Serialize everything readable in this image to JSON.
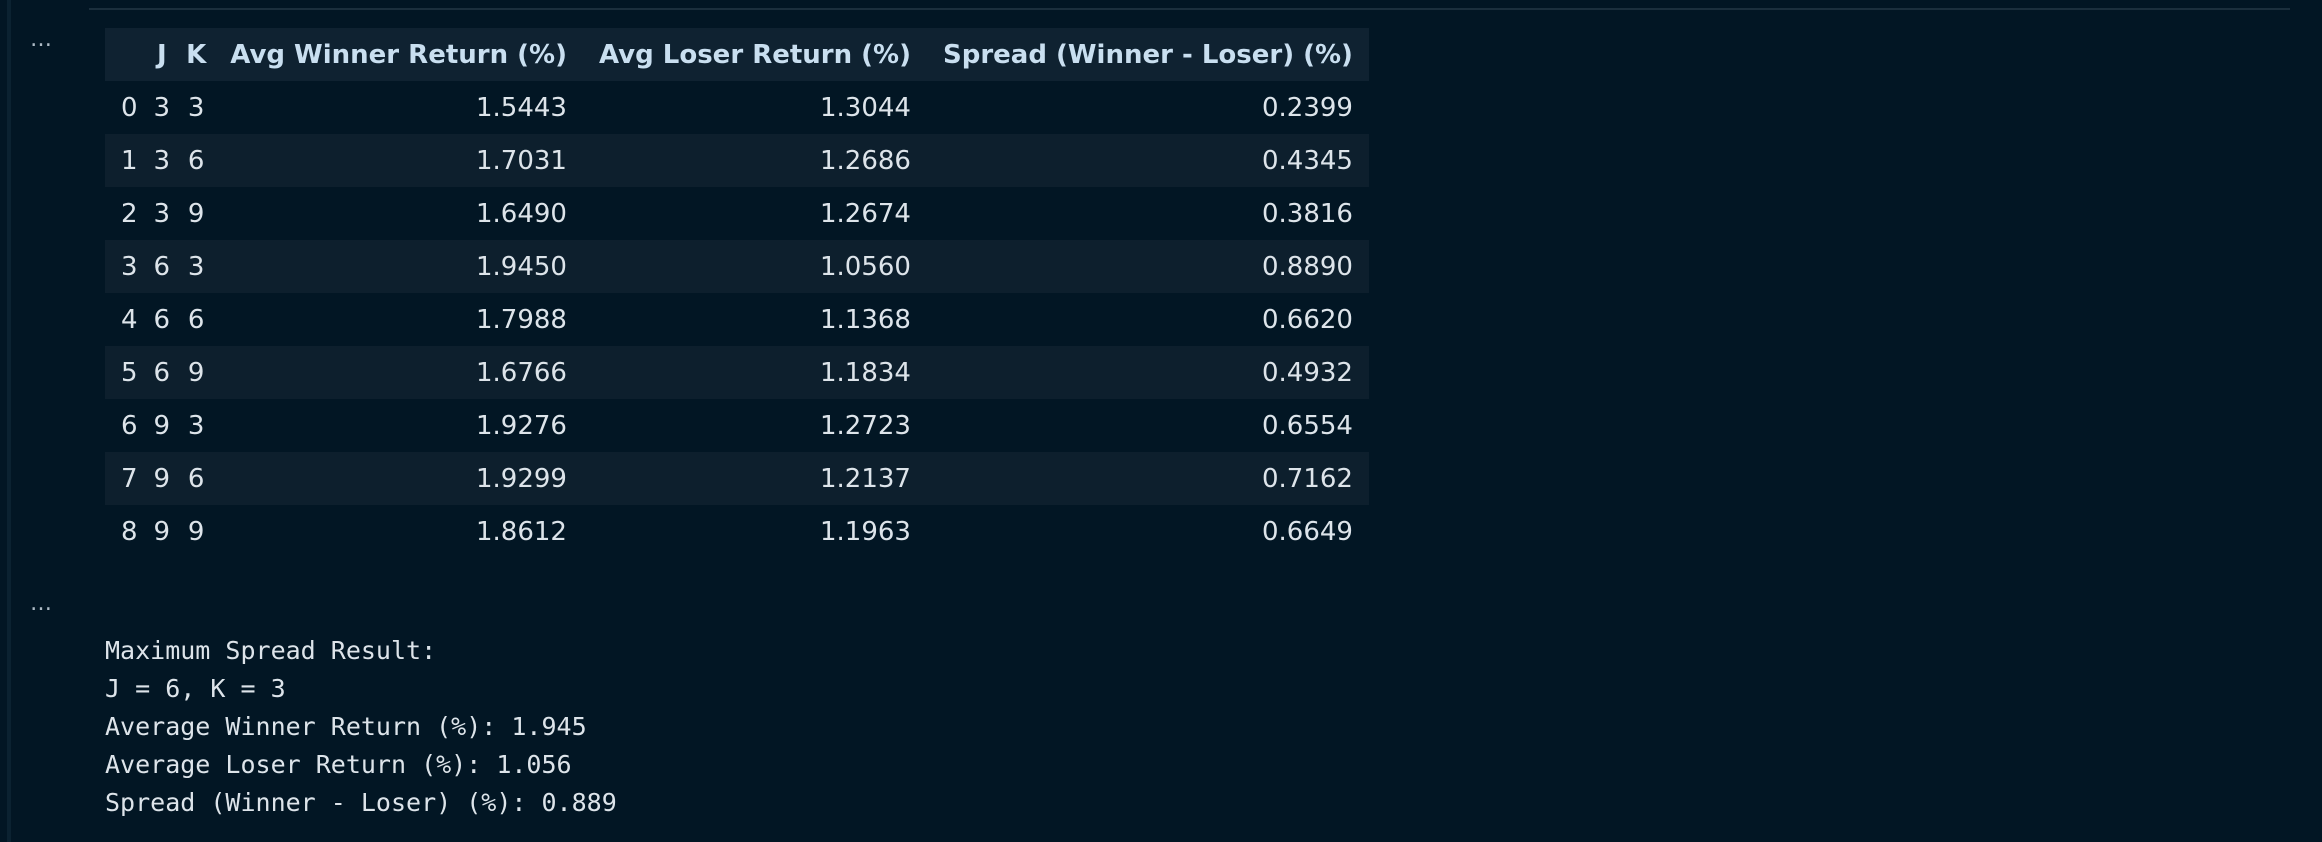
{
  "cells": {
    "cell1": {
      "more_label": "…",
      "table": {
        "columns": [
          "",
          "J",
          "K",
          "Avg Winner Return (%)",
          "Avg Loser Return (%)",
          "Spread (Winner - Loser) (%)"
        ],
        "rows": [
          [
            "0",
            "3",
            "3",
            "1.5443",
            "1.3044",
            "0.2399"
          ],
          [
            "1",
            "3",
            "6",
            "1.7031",
            "1.2686",
            "0.4345"
          ],
          [
            "2",
            "3",
            "9",
            "1.6490",
            "1.2674",
            "0.3816"
          ],
          [
            "3",
            "6",
            "3",
            "1.9450",
            "1.0560",
            "0.8890"
          ],
          [
            "4",
            "6",
            "6",
            "1.7988",
            "1.1368",
            "0.6620"
          ],
          [
            "5",
            "6",
            "9",
            "1.6766",
            "1.1834",
            "0.4932"
          ],
          [
            "6",
            "9",
            "3",
            "1.9276",
            "1.2723",
            "0.6554"
          ],
          [
            "7",
            "9",
            "6",
            "1.9299",
            "1.2137",
            "0.7162"
          ],
          [
            "8",
            "9",
            "9",
            "1.8612",
            "1.1963",
            "0.6649"
          ]
        ]
      }
    },
    "cell2": {
      "more_label": "…",
      "lines": [
        "Maximum Spread Result:",
        "J = 6, K = 3",
        "Average Winner Return (%): 1.945",
        "Average Loser Return (%): 1.056",
        "Spread (Winner - Loser) (%): 0.889"
      ]
    }
  }
}
